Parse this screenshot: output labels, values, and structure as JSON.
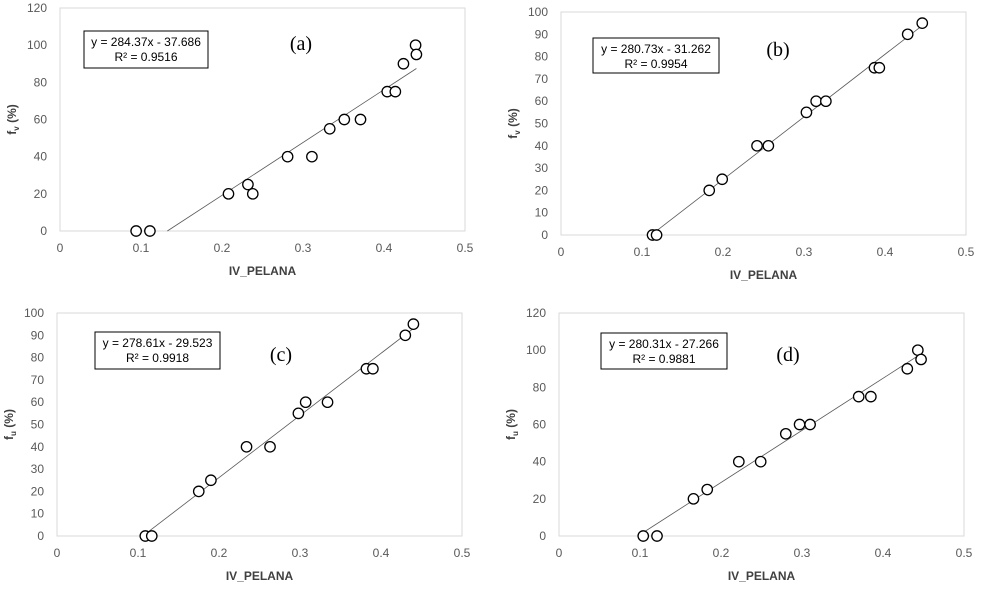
{
  "chart_data": [
    {
      "type": "scatter",
      "panel_label": "(a)",
      "xlabel": "IV_PELANA",
      "ylabel_main": "f",
      "ylabel_sub": "v",
      "ylabel_suffix": " (%)",
      "xlim": [
        0,
        0.5
      ],
      "ylim": [
        0,
        120
      ],
      "xticks": [
        "0",
        "0.1",
        "0.2",
        "0.3",
        "0.4",
        "0.5"
      ],
      "yticks": [
        "0",
        "20",
        "40",
        "60",
        "80",
        "100",
        "120"
      ],
      "equation": "y = 284.37x - 37.686",
      "r2_label": "R² = 0.9516",
      "trendline": {
        "slope": 284.37,
        "intercept": -37.686,
        "x_range": [
          0.1325,
          0.44
        ]
      },
      "points": [
        {
          "x": 0.094,
          "y": 0
        },
        {
          "x": 0.111,
          "y": 0
        },
        {
          "x": 0.208,
          "y": 20
        },
        {
          "x": 0.238,
          "y": 20
        },
        {
          "x": 0.232,
          "y": 25
        },
        {
          "x": 0.281,
          "y": 40
        },
        {
          "x": 0.311,
          "y": 40
        },
        {
          "x": 0.333,
          "y": 55
        },
        {
          "x": 0.351,
          "y": 60
        },
        {
          "x": 0.371,
          "y": 60
        },
        {
          "x": 0.404,
          "y": 75
        },
        {
          "x": 0.414,
          "y": 75
        },
        {
          "x": 0.424,
          "y": 90
        },
        {
          "x": 0.439,
          "y": 100
        },
        {
          "x": 0.44,
          "y": 95
        }
      ]
    },
    {
      "type": "scatter",
      "panel_label": "(b)",
      "xlabel": "IV_PELANA",
      "ylabel_main": "f",
      "ylabel_sub": "v",
      "ylabel_suffix": " (%)",
      "xlim": [
        0,
        0.5
      ],
      "ylim": [
        0,
        100
      ],
      "xticks": [
        "0",
        "0.1",
        "0.2",
        "0.3",
        "0.4",
        "0.5"
      ],
      "yticks": [
        "0",
        "10",
        "20",
        "30",
        "40",
        "50",
        "60",
        "70",
        "80",
        "90",
        "100"
      ],
      "equation": "y = 280.73x - 31.262",
      "r2_label": "R² = 0.9954",
      "trendline": {
        "slope": 280.73,
        "intercept": -31.262,
        "x_range": [
          0.111,
          0.445
        ]
      },
      "points": [
        {
          "x": 0.113,
          "y": 0
        },
        {
          "x": 0.118,
          "y": 0
        },
        {
          "x": 0.183,
          "y": 20
        },
        {
          "x": 0.199,
          "y": 25
        },
        {
          "x": 0.242,
          "y": 40
        },
        {
          "x": 0.256,
          "y": 40
        },
        {
          "x": 0.303,
          "y": 55
        },
        {
          "x": 0.315,
          "y": 60
        },
        {
          "x": 0.327,
          "y": 60
        },
        {
          "x": 0.387,
          "y": 75
        },
        {
          "x": 0.393,
          "y": 75
        },
        {
          "x": 0.428,
          "y": 90
        },
        {
          "x": 0.446,
          "y": 95
        }
      ]
    },
    {
      "type": "scatter",
      "panel_label": "(c)",
      "xlabel": "IV_PELANA",
      "ylabel_main": "f",
      "ylabel_sub": "u",
      "ylabel_suffix": " (%)",
      "xlim": [
        0,
        0.5
      ],
      "ylim": [
        0,
        100
      ],
      "xticks": [
        "0",
        "0.1",
        "0.2",
        "0.3",
        "0.4",
        "0.5"
      ],
      "yticks": [
        "0",
        "10",
        "20",
        "30",
        "40",
        "50",
        "60",
        "70",
        "80",
        "90",
        "100"
      ],
      "equation": "y = 278.61x - 29.523",
      "r2_label": "R² = 0.9918",
      "trendline": {
        "slope": 278.61,
        "intercept": -29.523,
        "x_range": [
          0.106,
          0.44
        ]
      },
      "points": [
        {
          "x": 0.109,
          "y": 0
        },
        {
          "x": 0.117,
          "y": 0
        },
        {
          "x": 0.175,
          "y": 20
        },
        {
          "x": 0.19,
          "y": 25
        },
        {
          "x": 0.234,
          "y": 40
        },
        {
          "x": 0.263,
          "y": 40
        },
        {
          "x": 0.298,
          "y": 55
        },
        {
          "x": 0.307,
          "y": 60
        },
        {
          "x": 0.334,
          "y": 60
        },
        {
          "x": 0.382,
          "y": 75
        },
        {
          "x": 0.39,
          "y": 75
        },
        {
          "x": 0.43,
          "y": 90
        },
        {
          "x": 0.44,
          "y": 95
        }
      ]
    },
    {
      "type": "scatter",
      "panel_label": "(d)",
      "xlabel": "IV_PELANA",
      "ylabel_main": "f",
      "ylabel_sub": "u",
      "ylabel_suffix": " (%)",
      "xlim": [
        0,
        0.5
      ],
      "ylim": [
        0,
        120
      ],
      "xticks": [
        "0",
        "0.1",
        "0.2",
        "0.3",
        "0.4",
        "0.5"
      ],
      "yticks": [
        "0",
        "20",
        "40",
        "60",
        "80",
        "100",
        "120"
      ],
      "equation": "y = 280.31x - 27.266",
      "r2_label": "R² = 0.9881",
      "trendline": {
        "slope": 280.31,
        "intercept": -27.266,
        "x_range": [
          0.0973,
          0.445
        ]
      },
      "points": [
        {
          "x": 0.104,
          "y": 0
        },
        {
          "x": 0.121,
          "y": 0
        },
        {
          "x": 0.166,
          "y": 20
        },
        {
          "x": 0.183,
          "y": 25
        },
        {
          "x": 0.222,
          "y": 40
        },
        {
          "x": 0.249,
          "y": 40
        },
        {
          "x": 0.28,
          "y": 55
        },
        {
          "x": 0.297,
          "y": 60
        },
        {
          "x": 0.31,
          "y": 60
        },
        {
          "x": 0.37,
          "y": 75
        },
        {
          "x": 0.385,
          "y": 75
        },
        {
          "x": 0.43,
          "y": 90
        },
        {
          "x": 0.443,
          "y": 100
        },
        {
          "x": 0.447,
          "y": 95
        }
      ]
    }
  ]
}
